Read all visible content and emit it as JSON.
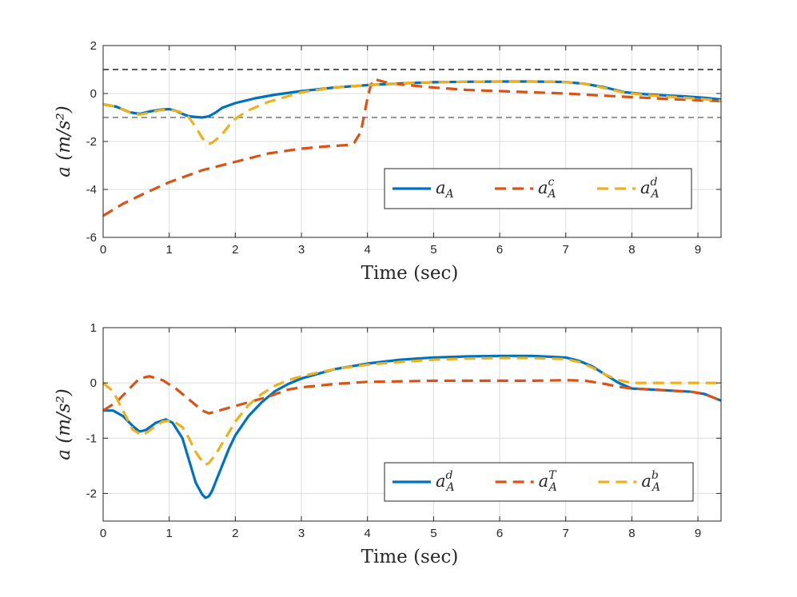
{
  "colors": {
    "series_blue": "#0072BD",
    "series_orange": "#D95319",
    "series_yellow": "#EDB120",
    "ref_black": "#222222",
    "ref_gray": "#777777"
  },
  "chart_data": [
    {
      "type": "line",
      "xlabel": "Time (sec)",
      "ylabel": "a (m/s²)",
      "xlim": [
        0,
        9.35
      ],
      "ylim": [
        -6,
        2
      ],
      "xticks": [
        "0",
        "1",
        "2",
        "3",
        "4",
        "5",
        "6",
        "7",
        "8",
        "9"
      ],
      "yticks": [
        "2",
        "0",
        "-2",
        "-4",
        "-6"
      ],
      "grid": true,
      "legend_position": "bottom-right",
      "reference_lines": [
        {
          "name": "upper-limit",
          "y": 1,
          "color": "#222222"
        },
        {
          "name": "lower-limit",
          "y": -1,
          "color": "#777777"
        }
      ],
      "series": [
        {
          "name": "a_A",
          "base": "a",
          "sub": "A",
          "sup": "",
          "style": "solid",
          "color": "#0072BD",
          "x": [
            0,
            0.2,
            0.4,
            0.55,
            0.7,
            0.85,
            1.0,
            1.1,
            1.2,
            1.3,
            1.4,
            1.5,
            1.6,
            1.7,
            1.8,
            2.0,
            2.3,
            2.6,
            3.0,
            3.5,
            4.0,
            4.5,
            5.0,
            5.5,
            6.0,
            6.5,
            7.0,
            7.3,
            7.6,
            7.9,
            8.2,
            8.5,
            8.8,
            9.1,
            9.35
          ],
          "y": [
            -0.45,
            -0.55,
            -0.78,
            -0.85,
            -0.75,
            -0.68,
            -0.65,
            -0.72,
            -0.85,
            -0.95,
            -0.98,
            -1.0,
            -0.95,
            -0.8,
            -0.6,
            -0.4,
            -0.2,
            -0.05,
            0.1,
            0.25,
            0.35,
            0.42,
            0.47,
            0.49,
            0.5,
            0.5,
            0.48,
            0.4,
            0.25,
            0.05,
            -0.03,
            -0.08,
            -0.12,
            -0.18,
            -0.25
          ]
        },
        {
          "name": "a_A^c",
          "base": "a",
          "sub": "A",
          "sup": "c",
          "style": "dashed",
          "color": "#D95319",
          "x": [
            0,
            0.3,
            0.6,
            1.0,
            1.5,
            2.0,
            2.5,
            3.0,
            3.4,
            3.7,
            3.8,
            3.9,
            4.0,
            4.05,
            4.1,
            4.3,
            4.6,
            5.0,
            5.5,
            6.0,
            6.5,
            7.0,
            7.5,
            8.0,
            8.5,
            9.0,
            9.35
          ],
          "y": [
            -5.1,
            -4.6,
            -4.2,
            -3.7,
            -3.2,
            -2.85,
            -2.5,
            -2.3,
            -2.2,
            -2.15,
            -2.05,
            -1.6,
            -0.2,
            0.35,
            0.6,
            0.45,
            0.35,
            0.25,
            0.15,
            0.1,
            0.05,
            0.0,
            -0.08,
            -0.15,
            -0.22,
            -0.28,
            -0.32
          ]
        },
        {
          "name": "a_A^d",
          "base": "a",
          "sub": "A",
          "sup": "d",
          "style": "dashed",
          "color": "#EDB120",
          "x": [
            0,
            0.2,
            0.4,
            0.55,
            0.7,
            0.85,
            1.0,
            1.15,
            1.3,
            1.4,
            1.5,
            1.55,
            1.6,
            1.65,
            1.7,
            1.8,
            1.9,
            2.0,
            2.2,
            2.5,
            3.0,
            3.5,
            4.0,
            4.5,
            5.0,
            5.5,
            6.0,
            6.5,
            7.0,
            7.3,
            7.6,
            7.9,
            8.2,
            8.5,
            8.8,
            9.1,
            9.35
          ],
          "y": [
            -0.45,
            -0.55,
            -0.78,
            -0.88,
            -0.8,
            -0.7,
            -0.68,
            -0.75,
            -1.0,
            -1.4,
            -1.85,
            -2.0,
            -2.1,
            -2.05,
            -1.95,
            -1.7,
            -1.35,
            -1.05,
            -0.7,
            -0.35,
            0.05,
            0.25,
            0.35,
            0.43,
            0.47,
            0.49,
            0.5,
            0.5,
            0.48,
            0.4,
            0.22,
            0.03,
            -0.06,
            -0.12,
            -0.18,
            -0.24,
            -0.3
          ]
        }
      ]
    },
    {
      "type": "line",
      "xlabel": "Time (sec)",
      "ylabel": "a (m/s²)",
      "xlim": [
        0,
        9.35
      ],
      "ylim": [
        -2.5,
        1
      ],
      "xticks": [
        "0",
        "1",
        "2",
        "3",
        "4",
        "5",
        "6",
        "7",
        "8",
        "9"
      ],
      "yticks": [
        "1",
        "0",
        "-1",
        "-2"
      ],
      "ytick_values": [
        1,
        0,
        -1,
        -2
      ],
      "grid": true,
      "legend_position": "bottom-right",
      "series": [
        {
          "name": "a_A^d",
          "base": "a",
          "sub": "A",
          "sup": "d",
          "style": "solid",
          "color": "#0072BD",
          "x": [
            0,
            0.15,
            0.3,
            0.45,
            0.55,
            0.65,
            0.8,
            0.95,
            1.05,
            1.2,
            1.3,
            1.4,
            1.5,
            1.55,
            1.6,
            1.65,
            1.7,
            1.8,
            1.9,
            2.0,
            2.2,
            2.4,
            2.6,
            2.8,
            3.0,
            3.5,
            4.0,
            4.5,
            5.0,
            5.5,
            6.0,
            6.5,
            7.0,
            7.2,
            7.4,
            7.6,
            7.8,
            8.0,
            8.3,
            8.6,
            8.9,
            9.1,
            9.35
          ],
          "y": [
            -0.5,
            -0.5,
            -0.6,
            -0.78,
            -0.88,
            -0.85,
            -0.72,
            -0.66,
            -0.72,
            -1.0,
            -1.4,
            -1.8,
            -2.02,
            -2.08,
            -2.05,
            -1.95,
            -1.8,
            -1.5,
            -1.2,
            -0.95,
            -0.6,
            -0.35,
            -0.15,
            -0.02,
            0.08,
            0.25,
            0.35,
            0.42,
            0.46,
            0.48,
            0.49,
            0.49,
            0.46,
            0.4,
            0.3,
            0.15,
            0.0,
            -0.1,
            -0.12,
            -0.14,
            -0.16,
            -0.2,
            -0.32
          ]
        },
        {
          "name": "a_A^T",
          "base": "a",
          "sub": "A",
          "sup": "T",
          "style": "dashed",
          "color": "#D95319",
          "x": [
            0,
            0.2,
            0.4,
            0.55,
            0.7,
            0.9,
            1.1,
            1.3,
            1.5,
            1.6,
            1.7,
            1.9,
            2.2,
            2.5,
            2.8,
            3.0,
            3.5,
            4.0,
            4.5,
            5.0,
            5.5,
            6.0,
            6.5,
            7.0,
            7.3,
            7.6,
            7.8,
            8.0,
            8.3,
            8.6,
            8.9,
            9.1,
            9.35
          ],
          "y": [
            -0.5,
            -0.35,
            -0.1,
            0.08,
            0.12,
            0.05,
            -0.1,
            -0.3,
            -0.5,
            -0.55,
            -0.52,
            -0.45,
            -0.35,
            -0.25,
            -0.12,
            -0.08,
            -0.02,
            0.02,
            0.03,
            0.04,
            0.04,
            0.04,
            0.04,
            0.05,
            0.04,
            -0.02,
            -0.07,
            -0.1,
            -0.12,
            -0.14,
            -0.16,
            -0.2,
            -0.32
          ]
        },
        {
          "name": "a_A^b",
          "base": "a",
          "sub": "A",
          "sup": "b",
          "style": "dashed",
          "color": "#EDB120",
          "x": [
            0,
            0.15,
            0.3,
            0.45,
            0.6,
            0.75,
            0.9,
            1.05,
            1.2,
            1.3,
            1.4,
            1.5,
            1.55,
            1.6,
            1.7,
            1.8,
            1.9,
            2.0,
            2.2,
            2.4,
            2.6,
            2.8,
            3.0,
            3.5,
            4.0,
            4.5,
            5.0,
            5.5,
            6.0,
            6.5,
            7.0,
            7.2,
            7.4,
            7.6,
            7.8,
            8.0,
            8.5,
            9.0,
            9.35
          ],
          "y": [
            0.0,
            -0.15,
            -0.5,
            -0.85,
            -0.95,
            -0.82,
            -0.7,
            -0.68,
            -0.8,
            -1.0,
            -1.25,
            -1.42,
            -1.48,
            -1.45,
            -1.3,
            -1.1,
            -0.9,
            -0.7,
            -0.4,
            -0.2,
            -0.05,
            0.05,
            0.12,
            0.25,
            0.33,
            0.38,
            0.42,
            0.44,
            0.45,
            0.45,
            0.43,
            0.38,
            0.28,
            0.15,
            0.05,
            0.0,
            0.0,
            0.0,
            0.0
          ]
        }
      ]
    }
  ]
}
